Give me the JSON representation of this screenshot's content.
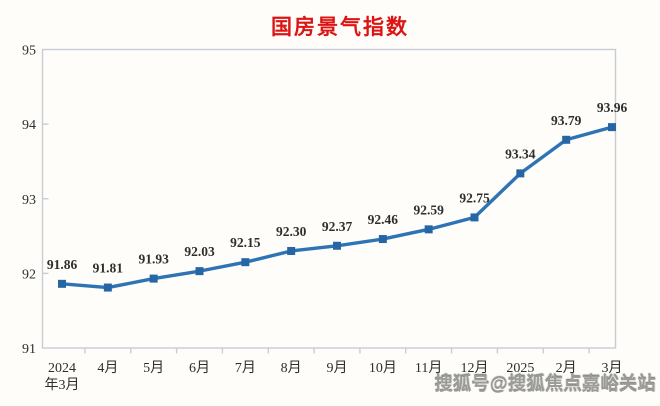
{
  "chart": {
    "title": "国房景气指数",
    "title_color": "#dd1414"
  },
  "watermark": {
    "text": "搜狐号@搜狐焦点嘉峪关站"
  },
  "chart_data": {
    "type": "line",
    "title": "国房景气指数",
    "categories": [
      "2024年3月",
      "4月",
      "5月",
      "6月",
      "7月",
      "8月",
      "9月",
      "10月",
      "11月",
      "12月",
      "2025",
      "2月",
      "3月"
    ],
    "x_tick_lines": [
      [
        "2024",
        "年3月"
      ],
      [
        "4月"
      ],
      [
        "5月"
      ],
      [
        "6月"
      ],
      [
        "7月"
      ],
      [
        "8月"
      ],
      [
        "9月"
      ],
      [
        "10月"
      ],
      [
        "11月"
      ],
      [
        "12月"
      ],
      [
        "2025"
      ],
      [
        "2月"
      ],
      [
        "3月"
      ]
    ],
    "values": [
      91.86,
      91.81,
      91.93,
      92.03,
      92.15,
      92.3,
      92.37,
      92.46,
      92.59,
      92.75,
      93.34,
      93.79,
      93.96
    ],
    "point_labels": [
      "91.86",
      "91.81",
      "91.93",
      "92.03",
      "92.15",
      "92.30",
      "92.37",
      "92.46",
      "92.59",
      "92.75",
      "93.34",
      "93.79",
      "93.96"
    ],
    "y_ticks": [
      95,
      94,
      93,
      92,
      91
    ],
    "ylim": [
      91,
      95
    ],
    "xlabel": "",
    "ylabel": "",
    "grid": false,
    "legend": null,
    "line_color": "#2e74b5",
    "marker_color": "#2766a4",
    "marker_shape": "square",
    "text_color": "#2e2e2e",
    "axis_color": "#c8cdd5"
  }
}
